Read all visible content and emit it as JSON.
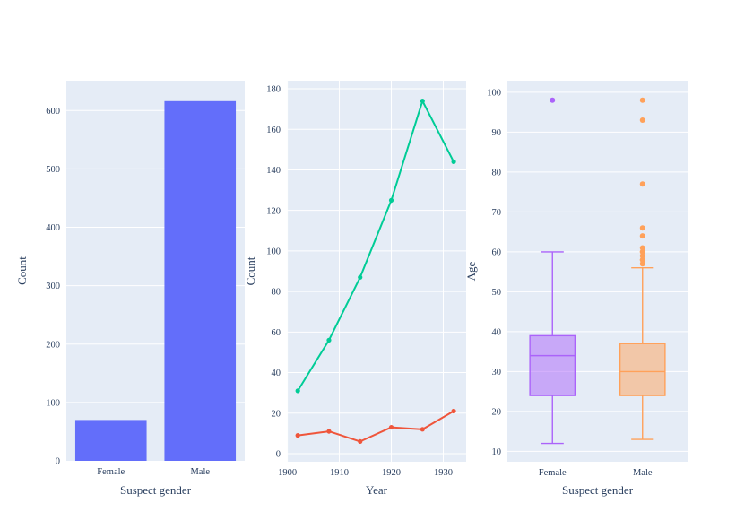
{
  "figure": {
    "background": "#ffffff",
    "plot_bgcolor": "#E5ECF6",
    "grid_color": "#ffffff",
    "text_color": "#2a3f5f"
  },
  "chart_data": [
    {
      "type": "bar",
      "name": "suspect-gender-count",
      "title": "",
      "xlabel": "Suspect gender",
      "ylabel": "Count",
      "categories": [
        "Female",
        "Male"
      ],
      "values": [
        70,
        616
      ],
      "bar_color": "#636EFA",
      "ylim": [
        0,
        651
      ],
      "yticks": [
        0,
        100,
        200,
        300,
        400,
        500,
        600
      ],
      "grid": true,
      "legend": "none"
    },
    {
      "type": "line",
      "name": "count-by-year",
      "title": "",
      "xlabel": "Year",
      "ylabel": "Count",
      "x": [
        1902,
        1908,
        1914,
        1920,
        1926,
        1932
      ],
      "series": [
        {
          "name": "series-green",
          "color": "#00CC96",
          "values": [
            31,
            56,
            87,
            125,
            174,
            144
          ]
        },
        {
          "name": "series-red",
          "color": "#EF553B",
          "values": [
            9,
            11,
            6,
            13,
            12,
            21
          ]
        }
      ],
      "xlim": [
        1899.9,
        1934.4
      ],
      "xticks": [
        1900,
        1910,
        1920,
        1930
      ],
      "ylim": [
        -4,
        184
      ],
      "yticks": [
        0,
        20,
        40,
        60,
        80,
        100,
        120,
        140,
        160,
        180
      ],
      "grid": true,
      "legend": "none"
    },
    {
      "type": "box",
      "name": "age-by-suspect-gender",
      "title": "",
      "xlabel": "Suspect gender",
      "ylabel": "Age",
      "categories": [
        "Female",
        "Male"
      ],
      "boxes": [
        {
          "category": "Female",
          "color": "#AB63FA",
          "lower_whisker": 12,
          "q1": 24,
          "median": 34,
          "q3": 39,
          "upper_whisker": 60,
          "outliers": [
            98
          ]
        },
        {
          "category": "Male",
          "color": "#FFA15A",
          "lower_whisker": 13,
          "q1": 24,
          "median": 30,
          "q3": 37,
          "upper_whisker": 56,
          "outliers": [
            57,
            58,
            58,
            59,
            60,
            60,
            61,
            64,
            66,
            77,
            93,
            98
          ]
        }
      ],
      "ylim": [
        7.4,
        102.9
      ],
      "yticks": [
        10,
        20,
        30,
        40,
        50,
        60,
        70,
        80,
        90,
        100
      ],
      "grid": true,
      "legend": "none"
    }
  ]
}
